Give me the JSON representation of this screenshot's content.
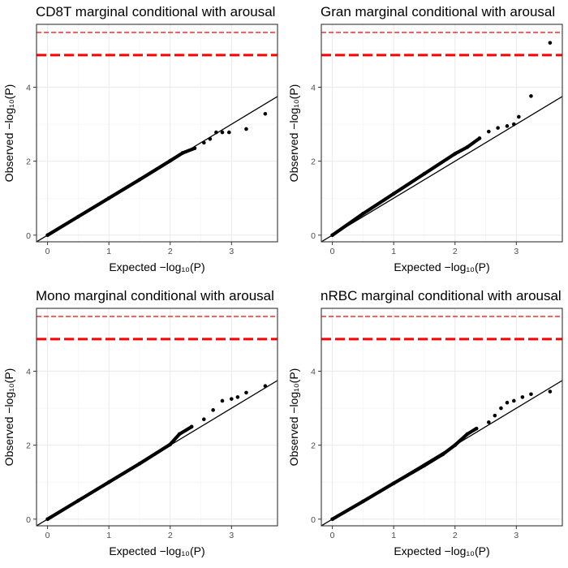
{
  "chart_data": [
    {
      "type": "scatter",
      "title": "CD8T marginal conditional with arousal",
      "xlabel": "Expected −log₁₀(P)",
      "ylabel": "Observed −log₁₀(P)",
      "xlim": [
        -0.18,
        3.75
      ],
      "ylim": [
        -0.18,
        5.7
      ],
      "xticks": [
        "0",
        "1",
        "2",
        "3"
      ],
      "yticks": [
        "0",
        "2",
        "4"
      ],
      "grid": true,
      "hlines": [
        {
          "y": 5.48,
          "style": "dashed-thin",
          "color": "#ff0000"
        },
        {
          "y": 4.87,
          "style": "dashed-thick",
          "color": "#ff0000"
        }
      ],
      "diagonal": {
        "slope": 1,
        "intercept": 0,
        "color": "#000000"
      },
      "points": [
        [
          0,
          0
        ],
        [
          0.5,
          0.5
        ],
        [
          1,
          1
        ],
        [
          1.5,
          1.5
        ],
        [
          2,
          2.01
        ],
        [
          2.2,
          2.22
        ],
        [
          2.4,
          2.35
        ],
        [
          2.55,
          2.5
        ],
        [
          2.65,
          2.6
        ],
        [
          2.75,
          2.78
        ],
        [
          2.85,
          2.78
        ],
        [
          2.96,
          2.78
        ],
        [
          3.24,
          2.87
        ],
        [
          3.55,
          3.28
        ]
      ]
    },
    {
      "type": "scatter",
      "title": "Gran marginal conditional with arousal",
      "xlabel": "Expected −log₁₀(P)",
      "ylabel": "Observed −log₁₀(P)",
      "xlim": [
        -0.18,
        3.75
      ],
      "ylim": [
        -0.18,
        5.7
      ],
      "xticks": [
        "0",
        "1",
        "2",
        "3"
      ],
      "yticks": [
        "0",
        "2",
        "4"
      ],
      "grid": true,
      "hlines": [
        {
          "y": 5.48,
          "style": "dashed-thin",
          "color": "#ff0000"
        },
        {
          "y": 4.87,
          "style": "dashed-thick",
          "color": "#ff0000"
        }
      ],
      "diagonal": {
        "slope": 1,
        "intercept": 0,
        "color": "#000000"
      },
      "points": [
        [
          0,
          0
        ],
        [
          0.5,
          0.58
        ],
        [
          1,
          1.12
        ],
        [
          1.5,
          1.66
        ],
        [
          2,
          2.2
        ],
        [
          2.2,
          2.38
        ],
        [
          2.4,
          2.62
        ],
        [
          2.55,
          2.8
        ],
        [
          2.7,
          2.9
        ],
        [
          2.85,
          2.95
        ],
        [
          2.96,
          3.0
        ],
        [
          3.04,
          3.2
        ],
        [
          3.24,
          3.76
        ],
        [
          3.55,
          5.2
        ]
      ]
    },
    {
      "type": "scatter",
      "title": "Mono marginal conditional with arousal",
      "xlabel": "Expected −log₁₀(P)",
      "ylabel": "Observed −log₁₀(P)",
      "xlim": [
        -0.18,
        3.75
      ],
      "ylim": [
        -0.18,
        5.7
      ],
      "xticks": [
        "0",
        "1",
        "2",
        "3"
      ],
      "yticks": [
        "0",
        "2",
        "4"
      ],
      "grid": true,
      "hlines": [
        {
          "y": 5.48,
          "style": "dashed-thin",
          "color": "#ff0000"
        },
        {
          "y": 4.87,
          "style": "dashed-thick",
          "color": "#ff0000"
        }
      ],
      "diagonal": {
        "slope": 1,
        "intercept": 0,
        "color": "#000000"
      },
      "points": [
        [
          0,
          0
        ],
        [
          0.5,
          0.5
        ],
        [
          1,
          1
        ],
        [
          1.5,
          1.5
        ],
        [
          2,
          2.02
        ],
        [
          2.15,
          2.3
        ],
        [
          2.35,
          2.5
        ],
        [
          2.55,
          2.7
        ],
        [
          2.7,
          2.95
        ],
        [
          2.85,
          3.2
        ],
        [
          3.0,
          3.25
        ],
        [
          3.1,
          3.3
        ],
        [
          3.24,
          3.42
        ],
        [
          3.55,
          3.6
        ]
      ]
    },
    {
      "type": "scatter",
      "title": "nRBC marginal conditional with arousal",
      "xlabel": "Expected −log₁₀(P)",
      "ylabel": "Observed −log₁₀(P)",
      "xlim": [
        -0.18,
        3.75
      ],
      "ylim": [
        -0.18,
        5.7
      ],
      "xticks": [
        "0",
        "1",
        "2",
        "3"
      ],
      "yticks": [
        "0",
        "2",
        "4"
      ],
      "grid": true,
      "hlines": [
        {
          "y": 5.48,
          "style": "dashed-thin",
          "color": "#ff0000"
        },
        {
          "y": 4.87,
          "style": "dashed-thick",
          "color": "#ff0000"
        }
      ],
      "diagonal": {
        "slope": 1,
        "intercept": 0,
        "color": "#000000"
      },
      "points": [
        [
          0,
          0
        ],
        [
          0.5,
          0.48
        ],
        [
          1,
          0.97
        ],
        [
          1.5,
          1.45
        ],
        [
          1.8,
          1.75
        ],
        [
          2.0,
          2.0
        ],
        [
          2.2,
          2.3
        ],
        [
          2.35,
          2.45
        ],
        [
          2.55,
          2.62
        ],
        [
          2.65,
          2.8
        ],
        [
          2.75,
          3.0
        ],
        [
          2.85,
          3.15
        ],
        [
          2.96,
          3.2
        ],
        [
          3.1,
          3.3
        ],
        [
          3.24,
          3.38
        ],
        [
          3.55,
          3.45
        ]
      ]
    }
  ]
}
